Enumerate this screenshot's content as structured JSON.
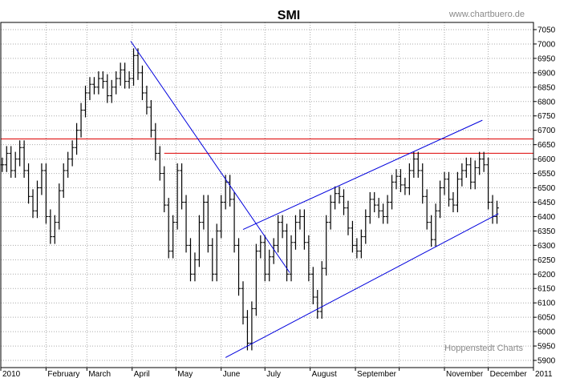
{
  "chart_data": {
    "type": "ohlc",
    "title": "SMI",
    "watermark_top": "www.chartbuero.de",
    "watermark_bottom": "Hoppenstedt Charts",
    "ylim": [
      5875,
      7075
    ],
    "y_ticks": [
      5900,
      5950,
      6000,
      6050,
      6100,
      6150,
      6200,
      6250,
      6300,
      6350,
      6400,
      6450,
      6500,
      6550,
      6600,
      6650,
      6700,
      6750,
      6800,
      6850,
      6900,
      6950,
      7000,
      7050
    ],
    "x_labels": [
      "2010",
      "February",
      "March",
      "April",
      "May",
      "June",
      "July",
      "August",
      "September",
      "November",
      "December",
      "2011"
    ],
    "x_label_days": [
      1,
      32,
      60,
      91,
      121,
      152,
      182,
      213,
      244,
      305,
      335,
      366
    ],
    "x_tick_days": [
      1,
      32,
      60,
      91,
      121,
      152,
      182,
      213,
      244,
      274,
      305,
      335,
      366
    ],
    "x_range_days": [
      1,
      366
    ],
    "grid": true,
    "colors": {
      "bars": "#000000",
      "trendlines": "#0000dd",
      "resistance": "#dd0000",
      "grid": "#aaaaaa"
    },
    "horizontal_lines": [
      {
        "value": 6670,
        "x_start_day": 1,
        "x_end_day": 366
      },
      {
        "value": 6620,
        "x_start_day": 113,
        "x_end_day": 366
      }
    ],
    "trendlines": [
      {
        "x": [
          90,
          199
        ],
        "y": [
          7010,
          6205
        ]
      },
      {
        "x": [
          167,
          331
        ],
        "y": [
          6355,
          6735
        ]
      },
      {
        "x": [
          155,
          342
        ],
        "y": [
          5910,
          6410
        ]
      }
    ],
    "bars_anchor": {
      "x_day": [
        2,
        5,
        8,
        11,
        14,
        17,
        20,
        23,
        26,
        29,
        32,
        35,
        38,
        41,
        44,
        47,
        50,
        53,
        56,
        59,
        62,
        65,
        68,
        71,
        74,
        77,
        80,
        83,
        86,
        89,
        92,
        95,
        98,
        101,
        104,
        107,
        110,
        113,
        116,
        119,
        122,
        125,
        128,
        131,
        134,
        137,
        140,
        143,
        146,
        149,
        152,
        155,
        158,
        161,
        164,
        167,
        170,
        173,
        176,
        179,
        182,
        185,
        188,
        191,
        194,
        197,
        200,
        203,
        206,
        209,
        212,
        215,
        218,
        221,
        224,
        227,
        230,
        233,
        236,
        239,
        242,
        245,
        248,
        251,
        254,
        257,
        260,
        263,
        266,
        269,
        272,
        275,
        278,
        281,
        284,
        287,
        290,
        293,
        296,
        299,
        302,
        305,
        308,
        311,
        314,
        317,
        320,
        323,
        326,
        329,
        332,
        335,
        338,
        341
      ],
      "close": [
        6580,
        6620,
        6560,
        6600,
        6640,
        6560,
        6470,
        6420,
        6500,
        6560,
        6400,
        6330,
        6380,
        6490,
        6560,
        6600,
        6640,
        6700,
        6770,
        6830,
        6860,
        6850,
        6880,
        6870,
        6820,
        6850,
        6880,
        6910,
        6870,
        6880,
        6960,
        6900,
        6830,
        6780,
        6700,
        6620,
        6550,
        6440,
        6280,
        6380,
        6560,
        6450,
        6300,
        6200,
        6250,
        6380,
        6450,
        6300,
        6200,
        6350,
        6450,
        6520,
        6460,
        6300,
        6150,
        6050,
        5960,
        6080,
        6280,
        6310,
        6200,
        6260,
        6300,
        6380,
        6350,
        6200,
        6310,
        6380,
        6400,
        6310,
        6200,
        6120,
        6070,
        6220,
        6380,
        6450,
        6480,
        6470,
        6430,
        6360,
        6300,
        6280,
        6330,
        6400,
        6460,
        6440,
        6420,
        6400,
        6450,
        6520,
        6540,
        6510,
        6500,
        6560,
        6600,
        6560,
        6470,
        6380,
        6320,
        6420,
        6500,
        6530,
        6460,
        6440,
        6530,
        6560,
        6580,
        6520,
        6570,
        6600,
        6580,
        6450,
        6400,
        6430
      ]
    }
  }
}
